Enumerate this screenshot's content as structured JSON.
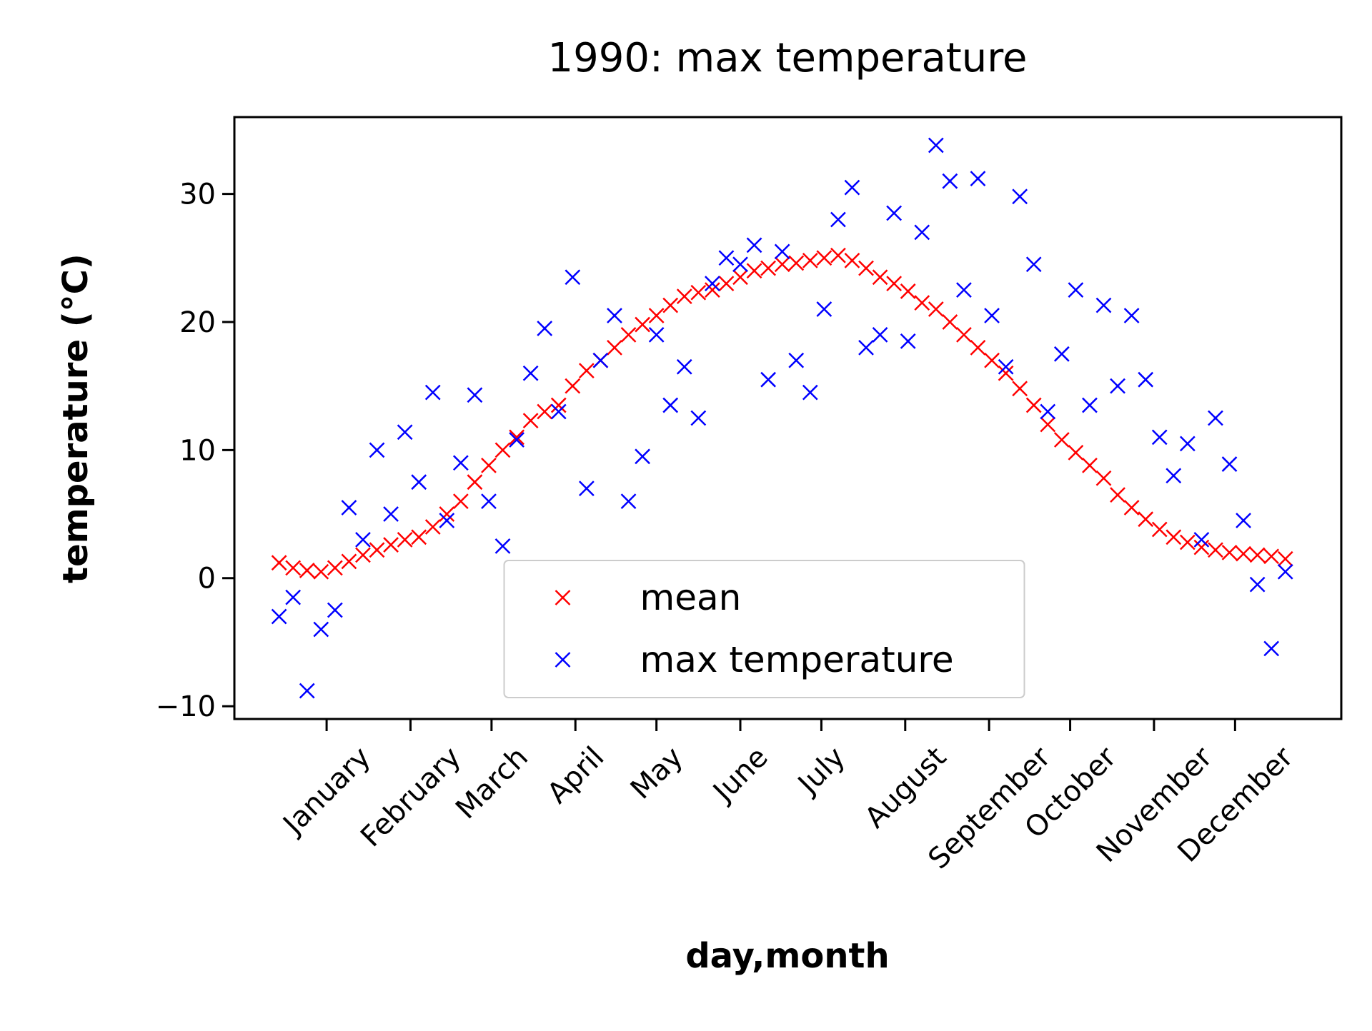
{
  "chart_data": {
    "type": "scatter",
    "title": "1990: max temperature",
    "xlabel": "day,month",
    "ylabel": "temperature (°C)",
    "x": [
      1,
      6,
      11,
      16,
      21,
      26,
      31,
      36,
      41,
      46,
      51,
      56,
      61,
      66,
      71,
      76,
      81,
      86,
      91,
      96,
      101,
      106,
      111,
      116,
      121,
      126,
      131,
      136,
      141,
      146,
      151,
      156,
      161,
      166,
      171,
      176,
      181,
      186,
      191,
      196,
      201,
      206,
      211,
      216,
      221,
      226,
      231,
      236,
      241,
      246,
      251,
      256,
      261,
      266,
      271,
      276,
      281,
      286,
      291,
      296,
      301,
      306,
      311,
      316,
      321,
      326,
      331,
      336,
      341,
      346,
      351,
      356,
      361
    ],
    "series": [
      {
        "name": "mean",
        "color": "#ff0000",
        "values": [
          1.2,
          0.8,
          0.6,
          0.5,
          0.8,
          1.3,
          1.8,
          2.2,
          2.6,
          3.0,
          3.2,
          4.0,
          5.0,
          6.0,
          7.5,
          8.8,
          10.0,
          11.0,
          12.3,
          13.0,
          13.5,
          15.0,
          16.2,
          17.0,
          18.0,
          19.0,
          19.8,
          20.5,
          21.3,
          22.0,
          22.3,
          22.5,
          23.0,
          23.5,
          24.0,
          24.2,
          24.5,
          24.6,
          24.8,
          25.0,
          25.2,
          24.8,
          24.2,
          23.5,
          23.0,
          22.4,
          21.5,
          21.0,
          20.0,
          19.0,
          18.0,
          17.0,
          16.0,
          14.8,
          13.5,
          12.0,
          10.8,
          9.8,
          8.8,
          7.8,
          6.5,
          5.5,
          4.6,
          3.8,
          3.2,
          2.8,
          2.4,
          2.2,
          2.0,
          1.9,
          1.8,
          1.7,
          1.5
        ]
      },
      {
        "name": "max temperature",
        "color": "#0000ff",
        "values": [
          -3.0,
          -1.5,
          -8.8,
          -4.0,
          -2.5,
          5.5,
          3.0,
          10.0,
          5.0,
          11.4,
          7.5,
          14.5,
          4.5,
          9.0,
          14.3,
          6.0,
          2.5,
          10.8,
          16.0,
          19.5,
          13.0,
          23.5,
          7.0,
          17.0,
          20.5,
          6.0,
          9.5,
          19.0,
          13.5,
          16.5,
          12.5,
          23.0,
          25.0,
          24.5,
          26.0,
          15.5,
          25.5,
          17.0,
          14.5,
          21.0,
          28.0,
          30.5,
          18.0,
          19.0,
          28.5,
          18.5,
          27.0,
          33.8,
          31.0,
          22.5,
          31.2,
          20.5,
          16.5,
          29.8,
          24.5,
          13.0,
          17.5,
          22.5,
          13.5,
          21.3,
          15.0,
          20.5,
          15.5,
          11.0,
          8.0,
          10.5,
          3.0,
          12.5,
          8.9,
          4.5,
          -0.5,
          -5.5,
          0.5
        ]
      }
    ],
    "xlim": [
      -15,
      381
    ],
    "xticks": [
      {
        "value": 18,
        "label": "January"
      },
      {
        "value": 48,
        "label": "February"
      },
      {
        "value": 77,
        "label": "March"
      },
      {
        "value": 107,
        "label": "April"
      },
      {
        "value": 136,
        "label": "May"
      },
      {
        "value": 166,
        "label": "June"
      },
      {
        "value": 195,
        "label": "July"
      },
      {
        "value": 225,
        "label": "August"
      },
      {
        "value": 255,
        "label": "September"
      },
      {
        "value": 284,
        "label": "October"
      },
      {
        "value": 314,
        "label": "November"
      },
      {
        "value": 343,
        "label": "December"
      }
    ],
    "ylim": [
      -11,
      36
    ],
    "yticks": [
      {
        "value": -10,
        "label": "−10"
      },
      0,
      10,
      20,
      30
    ],
    "legend": "lower center",
    "grid": false
  }
}
